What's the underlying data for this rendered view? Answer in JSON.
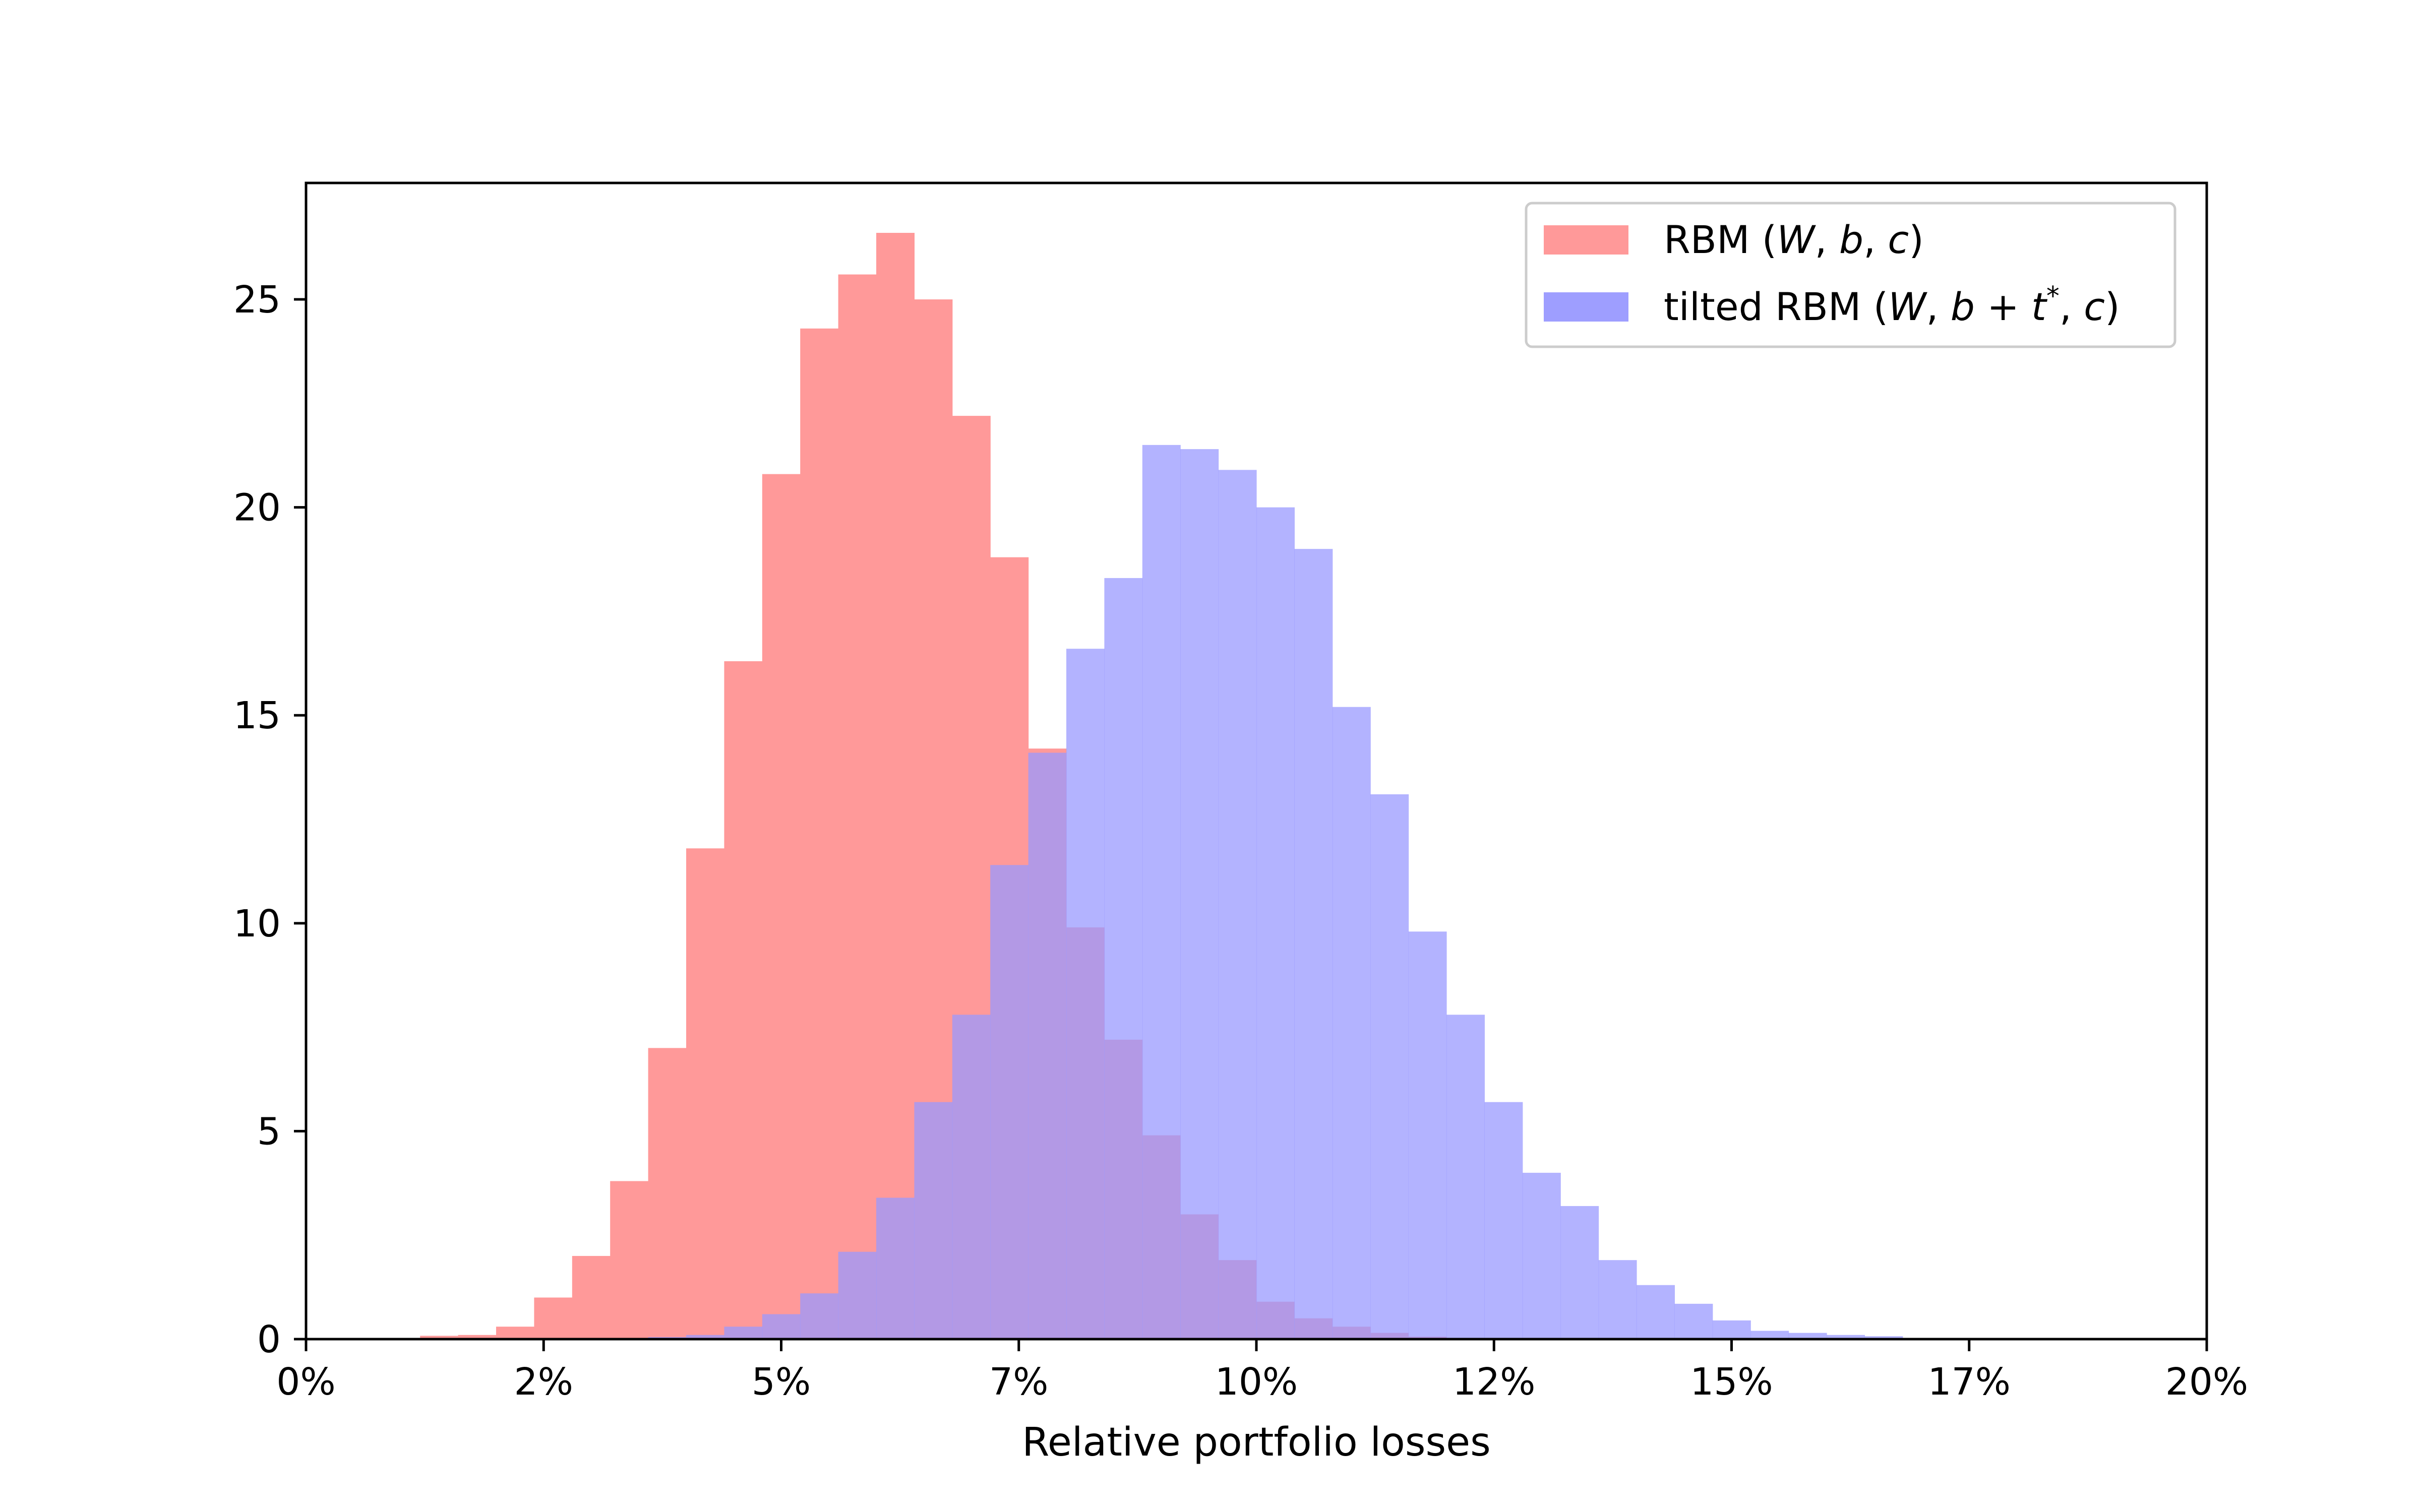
{
  "chart_data": {
    "type": "bar",
    "title": "",
    "xlabel": "Relative portfolio losses",
    "ylabel": "",
    "xlim": [
      0,
      0.2
    ],
    "ylim": [
      0,
      27.8
    ],
    "grid": false,
    "legend_position": "top-right",
    "x_tick_values": [
      0,
      0.025,
      0.05,
      0.075,
      0.1,
      0.125,
      0.15,
      0.175,
      0.2
    ],
    "x_tick_labels": [
      "0%",
      "2%",
      "5%",
      "7%",
      "10%",
      "12%",
      "15%",
      "17%",
      "20%"
    ],
    "y_ticks": [
      0,
      5,
      10,
      15,
      20,
      25
    ],
    "series": [
      {
        "name": "RBM (W, b, c)",
        "color": "#ff9999",
        "bins": [
          {
            "x0": 0.008,
            "x1": 0.012,
            "value": 0.03
          },
          {
            "x0": 0.012,
            "x1": 0.016,
            "value": 0.08
          },
          {
            "x0": 0.016,
            "x1": 0.02,
            "value": 0.1
          },
          {
            "x0": 0.02,
            "x1": 0.024,
            "value": 0.3
          },
          {
            "x0": 0.024,
            "x1": 0.028,
            "value": 1.0
          },
          {
            "x0": 0.028,
            "x1": 0.032,
            "value": 2.0
          },
          {
            "x0": 0.032,
            "x1": 0.036,
            "value": 3.8
          },
          {
            "x0": 0.036,
            "x1": 0.04,
            "value": 7.0
          },
          {
            "x0": 0.04,
            "x1": 0.044,
            "value": 11.8
          },
          {
            "x0": 0.044,
            "x1": 0.048,
            "value": 16.3
          },
          {
            "x0": 0.048,
            "x1": 0.052,
            "value": 20.8
          },
          {
            "x0": 0.052,
            "x1": 0.056,
            "value": 24.3
          },
          {
            "x0": 0.056,
            "x1": 0.06,
            "value": 25.6
          },
          {
            "x0": 0.06,
            "x1": 0.064,
            "value": 26.6
          },
          {
            "x0": 0.064,
            "x1": 0.068,
            "value": 25.0
          },
          {
            "x0": 0.068,
            "x1": 0.072,
            "value": 22.2
          },
          {
            "x0": 0.072,
            "x1": 0.076,
            "value": 18.8
          },
          {
            "x0": 0.076,
            "x1": 0.08,
            "value": 14.2
          },
          {
            "x0": 0.08,
            "x1": 0.084,
            "value": 9.9
          },
          {
            "x0": 0.084,
            "x1": 0.088,
            "value": 7.2
          },
          {
            "x0": 0.088,
            "x1": 0.092,
            "value": 4.9
          },
          {
            "x0": 0.092,
            "x1": 0.096,
            "value": 3.0
          },
          {
            "x0": 0.096,
            "x1": 0.1,
            "value": 1.9
          },
          {
            "x0": 0.1,
            "x1": 0.104,
            "value": 0.9
          },
          {
            "x0": 0.104,
            "x1": 0.108,
            "value": 0.5
          },
          {
            "x0": 0.108,
            "x1": 0.112,
            "value": 0.3
          },
          {
            "x0": 0.112,
            "x1": 0.116,
            "value": 0.15
          },
          {
            "x0": 0.116,
            "x1": 0.12,
            "value": 0.06
          },
          {
            "x0": 0.12,
            "x1": 0.124,
            "value": 0.03
          }
        ]
      },
      {
        "name": "tilted RBM (W, b + t*, c)",
        "color": "#9999ff",
        "bins": [
          {
            "x0": 0.036,
            "x1": 0.04,
            "value": 0.05
          },
          {
            "x0": 0.04,
            "x1": 0.044,
            "value": 0.1
          },
          {
            "x0": 0.044,
            "x1": 0.048,
            "value": 0.3
          },
          {
            "x0": 0.048,
            "x1": 0.052,
            "value": 0.6
          },
          {
            "x0": 0.052,
            "x1": 0.056,
            "value": 1.1
          },
          {
            "x0": 0.056,
            "x1": 0.06,
            "value": 2.1
          },
          {
            "x0": 0.06,
            "x1": 0.064,
            "value": 3.4
          },
          {
            "x0": 0.064,
            "x1": 0.068,
            "value": 5.7
          },
          {
            "x0": 0.068,
            "x1": 0.072,
            "value": 7.8
          },
          {
            "x0": 0.072,
            "x1": 0.076,
            "value": 11.4
          },
          {
            "x0": 0.076,
            "x1": 0.08,
            "value": 14.1
          },
          {
            "x0": 0.08,
            "x1": 0.084,
            "value": 16.6
          },
          {
            "x0": 0.084,
            "x1": 0.088,
            "value": 18.3
          },
          {
            "x0": 0.088,
            "x1": 0.092,
            "value": 21.5
          },
          {
            "x0": 0.092,
            "x1": 0.096,
            "value": 21.4
          },
          {
            "x0": 0.096,
            "x1": 0.1,
            "value": 20.9
          },
          {
            "x0": 0.1,
            "x1": 0.104,
            "value": 20.0
          },
          {
            "x0": 0.104,
            "x1": 0.108,
            "value": 19.0
          },
          {
            "x0": 0.108,
            "x1": 0.112,
            "value": 15.2
          },
          {
            "x0": 0.112,
            "x1": 0.116,
            "value": 13.1
          },
          {
            "x0": 0.116,
            "x1": 0.12,
            "value": 9.8
          },
          {
            "x0": 0.12,
            "x1": 0.124,
            "value": 7.8
          },
          {
            "x0": 0.124,
            "x1": 0.128,
            "value": 5.7
          },
          {
            "x0": 0.128,
            "x1": 0.132,
            "value": 4.0
          },
          {
            "x0": 0.132,
            "x1": 0.136,
            "value": 3.2
          },
          {
            "x0": 0.136,
            "x1": 0.14,
            "value": 1.9
          },
          {
            "x0": 0.14,
            "x1": 0.144,
            "value": 1.3
          },
          {
            "x0": 0.144,
            "x1": 0.148,
            "value": 0.85
          },
          {
            "x0": 0.148,
            "x1": 0.152,
            "value": 0.45
          },
          {
            "x0": 0.152,
            "x1": 0.156,
            "value": 0.2
          },
          {
            "x0": 0.156,
            "x1": 0.16,
            "value": 0.15
          },
          {
            "x0": 0.16,
            "x1": 0.164,
            "value": 0.1
          },
          {
            "x0": 0.164,
            "x1": 0.168,
            "value": 0.07
          },
          {
            "x0": 0.168,
            "x1": 0.172,
            "value": 0.03
          }
        ]
      }
    ],
    "legend": {
      "rbm_prefix": "RBM (",
      "rbm_W": "W",
      "rbm_sep1": ", ",
      "rbm_b": "b",
      "rbm_sep2": ", ",
      "rbm_c": "c",
      "rbm_suffix": ")",
      "tilted_prefix": "tilted RBM (",
      "tilted_W": "W",
      "tilted_sep1": ", ",
      "tilted_b": "b",
      "tilted_plus": " + ",
      "tilted_t": "t",
      "tilted_star": "*",
      "tilted_sep2": ", ",
      "tilted_c": "c",
      "tilted_suffix": ")"
    }
  }
}
